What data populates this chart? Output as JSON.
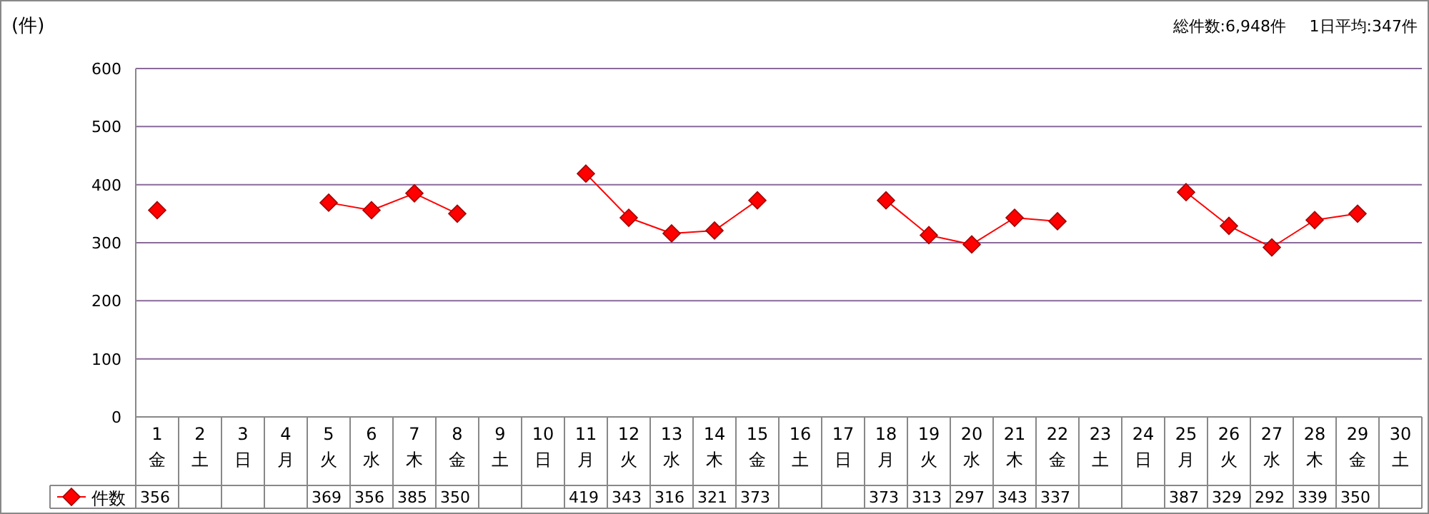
{
  "chart_data": {
    "type": "line",
    "ylabel": "(件)",
    "annotations": [
      "総件数:6,948件",
      "1日平均:347件"
    ],
    "categories": [
      "1 金",
      "2 土",
      "3 日",
      "4 月",
      "5 火",
      "6 水",
      "7 木",
      "8 金",
      "9 土",
      "10 日",
      "11 月",
      "12 火",
      "13 水",
      "14 木",
      "15 金",
      "16 土",
      "17 日",
      "18 月",
      "19 火",
      "20 水",
      "21 木",
      "22 金",
      "23 土",
      "24 日",
      "25 月",
      "26 火",
      "27 水",
      "28 木",
      "29 金",
      "30 土"
    ],
    "series": [
      {
        "name": "件数",
        "color": "#ff0000",
        "values": [
          356,
          null,
          null,
          null,
          369,
          356,
          385,
          350,
          null,
          null,
          419,
          343,
          316,
          321,
          373,
          null,
          null,
          373,
          313,
          297,
          343,
          337,
          null,
          null,
          387,
          329,
          292,
          339,
          350,
          null
        ]
      }
    ],
    "ylim": [
      0,
      600
    ],
    "yticks": [
      0,
      100,
      200,
      300,
      400,
      500,
      600
    ],
    "grid": "y",
    "legend": "bottom left",
    "marker": "diamond",
    "line_style": "solid",
    "data_labels": true
  }
}
